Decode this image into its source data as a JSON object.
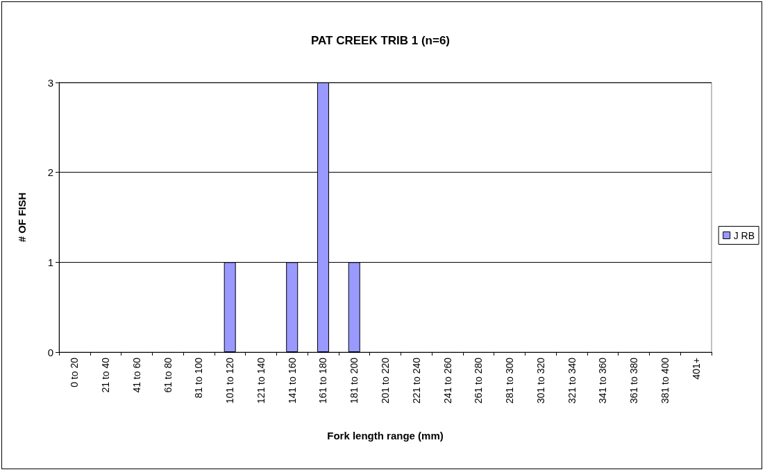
{
  "chart_data": {
    "type": "bar",
    "title": "PAT CREEK TRIB 1 (n=6)",
    "xlabel": "Fork length range (mm)",
    "ylabel": "# OF FISH",
    "categories": [
      "0 to 20",
      "21 to 40",
      "41 to 60",
      "61 to 80",
      "81 to 100",
      "101 to 120",
      "121 to 140",
      "141 to 160",
      "161 to 180",
      "181 to 200",
      "201 to 220",
      "221 to 240",
      "241 to 260",
      "261 to 280",
      "281 to 300",
      "301 to 320",
      "321 to 340",
      "341 to 360",
      "361 to 380",
      "381 to 400",
      "401+"
    ],
    "series": [
      {
        "name": "J RB",
        "color": "#9999ff",
        "values": [
          0,
          0,
          0,
          0,
          0,
          1,
          0,
          1,
          3,
          1,
          0,
          0,
          0,
          0,
          0,
          0,
          0,
          0,
          0,
          0,
          0
        ]
      }
    ],
    "ylim": [
      0,
      3
    ],
    "yticks": [
      0,
      1,
      2,
      3
    ],
    "grid": "y",
    "legend": "right"
  }
}
